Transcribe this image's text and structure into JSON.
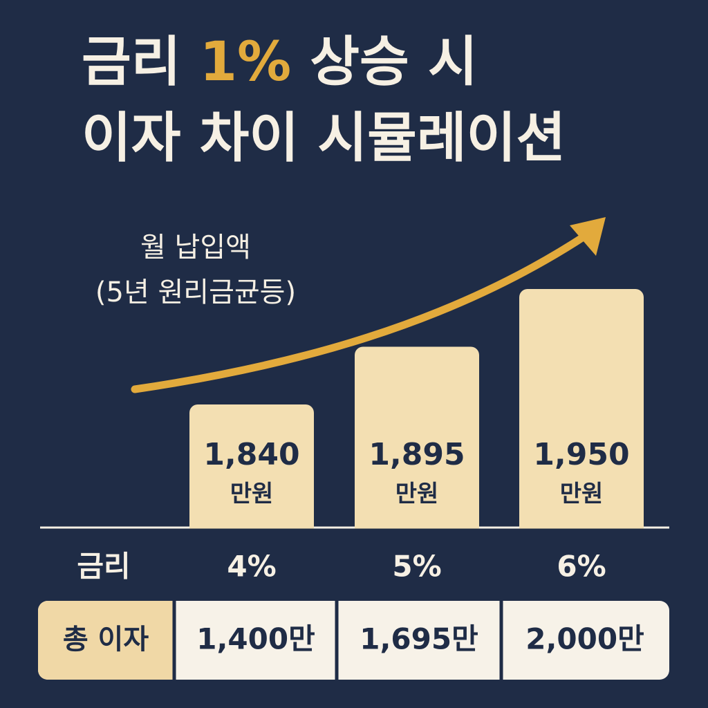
{
  "chart_data": {
    "type": "bar",
    "title": [
      [
        {
          "text": "금리 ",
          "color": "#f6f0e4"
        },
        {
          "text": "1%",
          "color": "#e2aa3c"
        },
        {
          "text": " 상승 시",
          "color": "#f6f0e4"
        }
      ],
      [
        {
          "text": "이자 차이 시뮬레이션",
          "color": "#f6f0e4"
        }
      ]
    ],
    "subtitle": [
      "월 납입액",
      "(5년 원리금균등)"
    ],
    "x_label": "금리",
    "categories": [
      "4%",
      "5%",
      "6%"
    ],
    "values": [
      1840,
      1895,
      1950
    ],
    "value_labels": [
      "1,840",
      "1,895",
      "1,950"
    ],
    "unit": "만원",
    "color": "#f3dfb2",
    "total_interest": {
      "label": "총 이자",
      "values": [
        "1,400만",
        "1,695만",
        "2,000만"
      ]
    }
  }
}
